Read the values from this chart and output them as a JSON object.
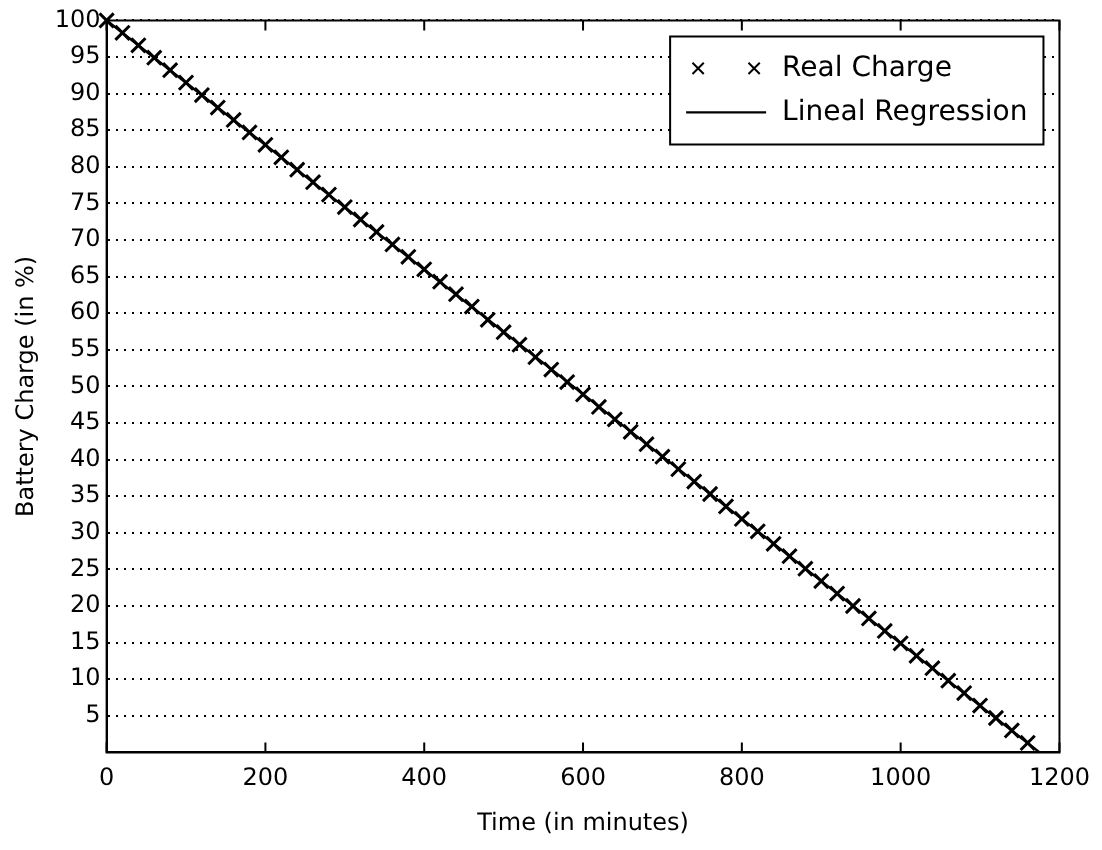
{
  "chart_data": {
    "type": "scatter",
    "xlabel": "Time (in minutes)",
    "ylabel": "Battery Charge (in %)",
    "xlim": [
      0,
      1200
    ],
    "xticks": [
      0,
      200,
      400,
      600,
      800,
      1000,
      1200
    ],
    "ylim": [
      0,
      100
    ],
    "yticks": [
      5,
      10,
      15,
      20,
      25,
      30,
      35,
      40,
      45,
      50,
      55,
      60,
      65,
      70,
      75,
      80,
      85,
      90,
      95,
      100
    ],
    "grid": "y",
    "legend": "top right",
    "series": [
      {
        "name": "Real Charge",
        "marker": "cross",
        "color": "#000000",
        "x": [
          0,
          20,
          40,
          60,
          80,
          100,
          120,
          140,
          160,
          180,
          200,
          220,
          240,
          260,
          280,
          300,
          320,
          340,
          360,
          380,
          400,
          420,
          440,
          460,
          480,
          500,
          520,
          540,
          560,
          580,
          600,
          620,
          640,
          660,
          680,
          700,
          720,
          740,
          760,
          780,
          800,
          820,
          840,
          860,
          880,
          900,
          920,
          940,
          960,
          980,
          1000,
          1020,
          1040,
          1060,
          1080,
          1100,
          1120,
          1140,
          1160
        ],
        "values": [
          100,
          98.3,
          96.6,
          94.9,
          93.2,
          91.5,
          89.8,
          88.1,
          86.4,
          84.7,
          83.0,
          81.3,
          79.6,
          77.9,
          76.2,
          74.5,
          72.8,
          71.1,
          69.4,
          67.7,
          66.0,
          64.3,
          62.6,
          60.9,
          59.1,
          57.4,
          55.7,
          54.0,
          52.3,
          50.6,
          48.9,
          47.2,
          45.5,
          43.8,
          42.1,
          40.4,
          38.7,
          37.0,
          35.3,
          33.6,
          31.9,
          30.2,
          28.5,
          26.8,
          25.1,
          23.4,
          21.7,
          20.0,
          18.3,
          16.6,
          14.9,
          13.2,
          11.5,
          9.8,
          8.1,
          6.4,
          4.7,
          3.0,
          1.3
        ]
      },
      {
        "name": "Lineal Regression",
        "type": "line",
        "color": "#000000",
        "line_style": "solid",
        "x": [
          0,
          1175
        ],
        "values": [
          100,
          0
        ]
      }
    ]
  }
}
